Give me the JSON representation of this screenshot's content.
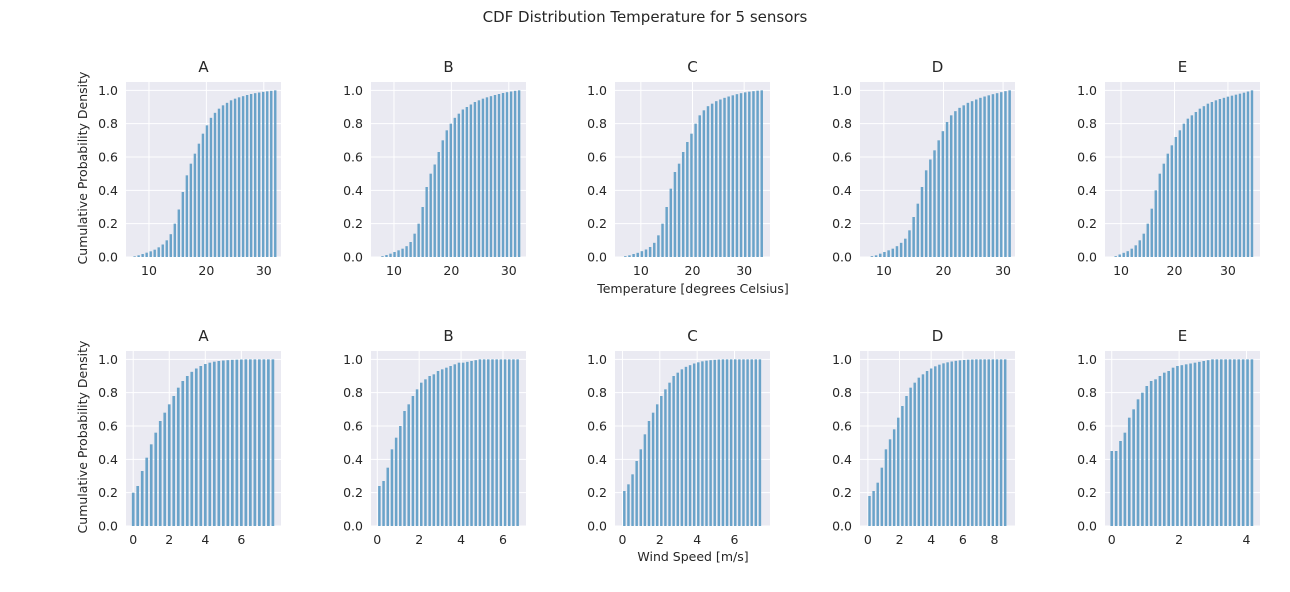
{
  "suptitle": "CDF Distribution Temperature for 5 sensors",
  "labels": {
    "temp_xlabel": "Temperature [degrees Celsius]",
    "wind_xlabel": "Wind Speed [m/s]",
    "ylabel": "Cumulative Probability Density"
  },
  "style": {
    "bar_color": "#6aa3c9",
    "axes_bg": "#eaeaf2",
    "grid_color": "#ffffff",
    "text_color": "#262626"
  },
  "chart_data": [
    {
      "type": "bar",
      "title": "A",
      "xlabel": "",
      "ylabel": "Cumulative Probability Density",
      "xlim": [
        6,
        33
      ],
      "ylim": [
        0,
        1.05
      ],
      "xticks": [
        10,
        20,
        30
      ],
      "yticks": [
        0.0,
        0.2,
        0.4,
        0.6,
        0.8,
        1.0
      ],
      "grid": true,
      "x": [
        7.5,
        8.2,
        8.9,
        9.6,
        10.3,
        11.0,
        11.7,
        12.4,
        13.1,
        13.8,
        14.5,
        15.2,
        15.9,
        16.6,
        17.3,
        18.0,
        18.7,
        19.4,
        20.1,
        20.8,
        21.5,
        22.2,
        22.9,
        23.6,
        24.3,
        25.0,
        25.7,
        26.4,
        27.1,
        27.8,
        28.5,
        29.2,
        29.9,
        30.6,
        31.3,
        32.0
      ],
      "values": [
        0.004,
        0.01,
        0.018,
        0.026,
        0.034,
        0.044,
        0.058,
        0.075,
        0.1,
        0.137,
        0.2,
        0.285,
        0.39,
        0.49,
        0.56,
        0.62,
        0.68,
        0.74,
        0.79,
        0.835,
        0.865,
        0.89,
        0.91,
        0.925,
        0.94,
        0.95,
        0.958,
        0.965,
        0.972,
        0.978,
        0.983,
        0.987,
        0.991,
        0.994,
        0.997,
        1.0
      ]
    },
    {
      "type": "bar",
      "title": "B",
      "xlabel": "",
      "ylabel": "",
      "xlim": [
        6,
        33
      ],
      "ylim": [
        0,
        1.05
      ],
      "xticks": [
        10,
        20,
        30
      ],
      "yticks": [
        0.0,
        0.2,
        0.4,
        0.6,
        0.8,
        1.0
      ],
      "grid": true,
      "x": [
        8.0,
        8.7,
        9.4,
        10.1,
        10.8,
        11.5,
        12.2,
        12.9,
        13.6,
        14.3,
        15.0,
        15.7,
        16.4,
        17.1,
        17.8,
        18.5,
        19.2,
        19.9,
        20.6,
        21.3,
        22.0,
        22.7,
        23.4,
        24.1,
        24.8,
        25.5,
        26.2,
        26.9,
        27.6,
        28.3,
        29.0,
        29.7,
        30.4,
        31.1,
        31.8
      ],
      "values": [
        0.005,
        0.012,
        0.02,
        0.03,
        0.04,
        0.05,
        0.065,
        0.09,
        0.14,
        0.2,
        0.3,
        0.42,
        0.5,
        0.555,
        0.63,
        0.7,
        0.76,
        0.8,
        0.835,
        0.86,
        0.885,
        0.9,
        0.915,
        0.93,
        0.94,
        0.95,
        0.958,
        0.965,
        0.972,
        0.978,
        0.984,
        0.989,
        0.993,
        0.997,
        1.0
      ]
    },
    {
      "type": "bar",
      "title": "C",
      "xlabel": "",
      "ylabel": "",
      "xlim": [
        5,
        35
      ],
      "ylim": [
        0,
        1.05
      ],
      "xticks": [
        10,
        20,
        30
      ],
      "yticks": [
        0.0,
        0.2,
        0.4,
        0.6,
        0.8,
        1.0
      ],
      "grid": true,
      "x": [
        7.0,
        7.8,
        8.6,
        9.4,
        10.2,
        11.0,
        11.8,
        12.6,
        13.4,
        14.2,
        15.0,
        15.8,
        16.6,
        17.4,
        18.2,
        19.0,
        19.8,
        20.6,
        21.4,
        22.2,
        23.0,
        23.8,
        24.6,
        25.4,
        26.2,
        27.0,
        27.8,
        28.6,
        29.4,
        30.2,
        31.0,
        31.8,
        32.6,
        33.4
      ],
      "values": [
        0.005,
        0.01,
        0.018,
        0.025,
        0.035,
        0.045,
        0.06,
        0.085,
        0.13,
        0.2,
        0.3,
        0.41,
        0.51,
        0.56,
        0.63,
        0.69,
        0.74,
        0.8,
        0.85,
        0.88,
        0.905,
        0.92,
        0.935,
        0.945,
        0.955,
        0.963,
        0.97,
        0.977,
        0.983,
        0.988,
        0.992,
        0.995,
        0.998,
        1.0
      ]
    },
    {
      "type": "bar",
      "title": "D",
      "xlabel": "",
      "ylabel": "",
      "xlim": [
        6,
        32
      ],
      "ylim": [
        0,
        1.05
      ],
      "xticks": [
        10,
        20,
        30
      ],
      "yticks": [
        0.0,
        0.2,
        0.4,
        0.6,
        0.8,
        1.0
      ],
      "grid": true,
      "x": [
        8.0,
        8.7,
        9.4,
        10.1,
        10.8,
        11.5,
        12.2,
        12.9,
        13.6,
        14.3,
        15.0,
        15.7,
        16.4,
        17.1,
        17.8,
        18.5,
        19.2,
        19.9,
        20.6,
        21.3,
        22.0,
        22.7,
        23.4,
        24.1,
        24.8,
        25.5,
        26.2,
        26.9,
        27.6,
        28.3,
        29.0,
        29.7,
        30.4,
        31.1
      ],
      "values": [
        0.005,
        0.01,
        0.02,
        0.03,
        0.04,
        0.05,
        0.065,
        0.085,
        0.11,
        0.16,
        0.24,
        0.32,
        0.42,
        0.52,
        0.585,
        0.64,
        0.7,
        0.755,
        0.81,
        0.85,
        0.875,
        0.895,
        0.91,
        0.925,
        0.935,
        0.945,
        0.955,
        0.963,
        0.97,
        0.977,
        0.983,
        0.989,
        0.995,
        1.0
      ]
    },
    {
      "type": "bar",
      "title": "E",
      "xlabel": "",
      "ylabel": "",
      "xlim": [
        7,
        36
      ],
      "ylim": [
        0,
        1.05
      ],
      "xticks": [
        10,
        20,
        30
      ],
      "yticks": [
        0.0,
        0.2,
        0.4,
        0.6,
        0.8,
        1.0
      ],
      "grid": true,
      "x": [
        9.0,
        9.75,
        10.5,
        11.25,
        12.0,
        12.75,
        13.5,
        14.25,
        15.0,
        15.75,
        16.5,
        17.25,
        18.0,
        18.75,
        19.5,
        20.25,
        21.0,
        21.75,
        22.5,
        23.25,
        24.0,
        24.75,
        25.5,
        26.25,
        27.0,
        27.75,
        28.5,
        29.25,
        30.0,
        30.75,
        31.5,
        32.25,
        33.0,
        33.75,
        34.5
      ],
      "values": [
        0.005,
        0.015,
        0.025,
        0.035,
        0.05,
        0.07,
        0.1,
        0.14,
        0.2,
        0.29,
        0.4,
        0.5,
        0.56,
        0.62,
        0.67,
        0.72,
        0.76,
        0.8,
        0.83,
        0.85,
        0.87,
        0.89,
        0.905,
        0.92,
        0.93,
        0.94,
        0.948,
        0.955,
        0.962,
        0.968,
        0.974,
        0.98,
        0.986,
        0.993,
        1.0
      ]
    },
    {
      "type": "bar",
      "title": "A",
      "xlabel": "",
      "ylabel": "Cumulative Probability Density",
      "xlim": [
        -0.4,
        8.2
      ],
      "ylim": [
        0,
        1.05
      ],
      "xticks": [
        0,
        2,
        4,
        6
      ],
      "yticks": [
        0.0,
        0.2,
        0.4,
        0.6,
        0.8,
        1.0
      ],
      "grid": true,
      "x": [
        0.0,
        0.25,
        0.5,
        0.75,
        1.0,
        1.25,
        1.5,
        1.75,
        2.0,
        2.25,
        2.5,
        2.75,
        3.0,
        3.25,
        3.5,
        3.75,
        4.0,
        4.25,
        4.5,
        4.75,
        5.0,
        5.25,
        5.5,
        5.75,
        6.0,
        6.25,
        6.5,
        6.75,
        7.0,
        7.25,
        7.5,
        7.75
      ],
      "values": [
        0.2,
        0.24,
        0.33,
        0.41,
        0.49,
        0.56,
        0.63,
        0.68,
        0.73,
        0.78,
        0.83,
        0.87,
        0.9,
        0.925,
        0.945,
        0.96,
        0.972,
        0.98,
        0.986,
        0.99,
        0.993,
        0.995,
        0.997,
        0.998,
        0.999,
        1.0,
        1.0,
        1.0,
        1.0,
        1.0,
        1.0,
        1.0
      ]
    },
    {
      "type": "bar",
      "title": "B",
      "xlabel": "",
      "ylabel": "",
      "xlim": [
        -0.3,
        7.1
      ],
      "ylim": [
        0,
        1.05
      ],
      "xticks": [
        0,
        2,
        4,
        6
      ],
      "yticks": [
        0.0,
        0.2,
        0.4,
        0.6,
        0.8,
        1.0
      ],
      "grid": true,
      "x": [
        0.1,
        0.3,
        0.5,
        0.7,
        0.9,
        1.1,
        1.3,
        1.5,
        1.7,
        1.9,
        2.1,
        2.3,
        2.5,
        2.7,
        2.9,
        3.1,
        3.3,
        3.5,
        3.7,
        3.9,
        4.1,
        4.3,
        4.5,
        4.7,
        4.9,
        5.1,
        5.3,
        5.5,
        5.7,
        5.9,
        6.1,
        6.3,
        6.5,
        6.7
      ],
      "values": [
        0.24,
        0.27,
        0.35,
        0.46,
        0.53,
        0.6,
        0.69,
        0.73,
        0.78,
        0.82,
        0.86,
        0.88,
        0.9,
        0.91,
        0.93,
        0.94,
        0.95,
        0.96,
        0.97,
        0.98,
        0.98,
        0.985,
        0.99,
        0.995,
        1.0,
        1.0,
        1.0,
        1.0,
        1.0,
        1.0,
        1.0,
        1.0,
        1.0,
        1.0
      ]
    },
    {
      "type": "bar",
      "title": "C",
      "xlabel": "",
      "ylabel": "",
      "xlim": [
        -0.4,
        7.9
      ],
      "ylim": [
        0,
        1.05
      ],
      "xticks": [
        0,
        2,
        4,
        6
      ],
      "yticks": [
        0.0,
        0.2,
        0.4,
        0.6,
        0.8,
        1.0
      ],
      "grid": true,
      "x": [
        0.1,
        0.32,
        0.54,
        0.76,
        0.98,
        1.2,
        1.42,
        1.64,
        1.86,
        2.08,
        2.3,
        2.52,
        2.74,
        2.96,
        3.18,
        3.4,
        3.62,
        3.84,
        4.06,
        4.28,
        4.5,
        4.72,
        4.94,
        5.16,
        5.38,
        5.6,
        5.82,
        6.04,
        6.26,
        6.48,
        6.7,
        6.92,
        7.14,
        7.36
      ],
      "values": [
        0.21,
        0.25,
        0.31,
        0.39,
        0.46,
        0.55,
        0.63,
        0.68,
        0.73,
        0.78,
        0.82,
        0.86,
        0.9,
        0.92,
        0.94,
        0.955,
        0.965,
        0.975,
        0.982,
        0.988,
        0.992,
        0.995,
        0.997,
        0.999,
        1.0,
        1.0,
        1.0,
        1.0,
        1.0,
        1.0,
        1.0,
        1.0,
        1.0,
        1.0
      ]
    },
    {
      "type": "bar",
      "title": "D",
      "xlabel": "",
      "ylabel": "",
      "xlim": [
        -0.5,
        9.3
      ],
      "ylim": [
        0,
        1.05
      ],
      "xticks": [
        0,
        2,
        4,
        6,
        8
      ],
      "yticks": [
        0.0,
        0.2,
        0.4,
        0.6,
        0.8,
        1.0
      ],
      "grid": true,
      "x": [
        0.1,
        0.36,
        0.62,
        0.88,
        1.14,
        1.4,
        1.66,
        1.92,
        2.18,
        2.44,
        2.7,
        2.96,
        3.22,
        3.48,
        3.74,
        4.0,
        4.26,
        4.52,
        4.78,
        5.04,
        5.3,
        5.56,
        5.82,
        6.08,
        6.34,
        6.6,
        6.86,
        7.12,
        7.38,
        7.64,
        7.9,
        8.16,
        8.42,
        8.68
      ],
      "values": [
        0.18,
        0.21,
        0.26,
        0.35,
        0.46,
        0.52,
        0.58,
        0.65,
        0.72,
        0.78,
        0.83,
        0.86,
        0.89,
        0.91,
        0.93,
        0.945,
        0.958,
        0.968,
        0.976,
        0.982,
        0.987,
        0.991,
        0.994,
        0.996,
        0.998,
        0.999,
        1.0,
        1.0,
        1.0,
        1.0,
        1.0,
        1.0,
        1.0,
        1.0
      ]
    },
    {
      "type": "bar",
      "title": "E",
      "xlabel": "",
      "ylabel": "",
      "xlim": [
        -0.2,
        4.4
      ],
      "ylim": [
        0,
        1.05
      ],
      "xticks": [
        0,
        2,
        4
      ],
      "yticks": [
        0.0,
        0.2,
        0.4,
        0.6,
        0.8,
        1.0
      ],
      "grid": true,
      "x": [
        0.0,
        0.13,
        0.26,
        0.39,
        0.52,
        0.65,
        0.78,
        0.91,
        1.04,
        1.17,
        1.3,
        1.43,
        1.56,
        1.69,
        1.82,
        1.95,
        2.08,
        2.21,
        2.34,
        2.47,
        2.6,
        2.73,
        2.86,
        2.99,
        3.12,
        3.25,
        3.38,
        3.51,
        3.64,
        3.77,
        3.9,
        4.03,
        4.16
      ],
      "values": [
        0.45,
        0.45,
        0.51,
        0.56,
        0.65,
        0.7,
        0.76,
        0.8,
        0.84,
        0.87,
        0.88,
        0.9,
        0.92,
        0.93,
        0.95,
        0.96,
        0.965,
        0.97,
        0.975,
        0.98,
        0.985,
        0.99,
        0.995,
        1.0,
        1.0,
        1.0,
        1.0,
        1.0,
        1.0,
        1.0,
        1.0,
        1.0,
        1.0
      ]
    }
  ]
}
